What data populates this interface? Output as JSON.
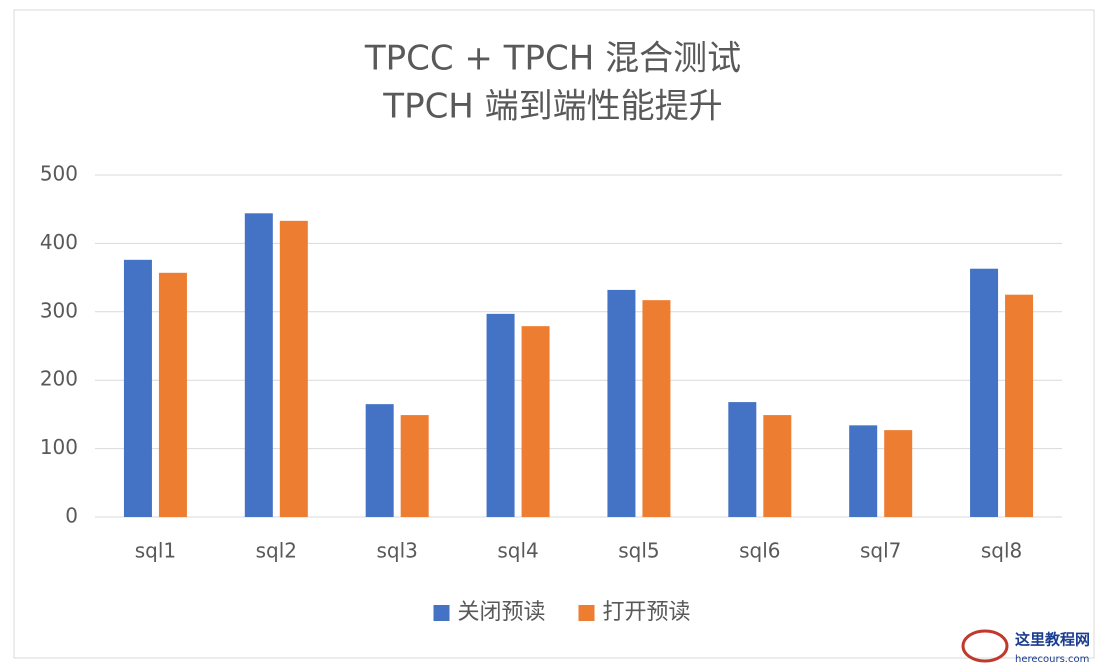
{
  "chart_data": {
    "type": "bar",
    "title": [
      "TPCC + TPCH 混合测试",
      "TPCH 端到端性能提升"
    ],
    "categories": [
      "sql1",
      "sql2",
      "sql3",
      "sql4",
      "sql5",
      "sql6",
      "sql7",
      "sql8"
    ],
    "series": [
      {
        "name": "关闭预读",
        "color": "#4472c4",
        "values": [
          376,
          444,
          165,
          297,
          332,
          168,
          134,
          363
        ]
      },
      {
        "name": "打开预读",
        "color": "#ed7d31",
        "values": [
          357,
          433,
          149,
          279,
          317,
          149,
          127,
          325
        ]
      }
    ],
    "ylim": [
      0,
      500
    ],
    "yticks": [
      0,
      100,
      200,
      300,
      400,
      500
    ],
    "grid": true,
    "legend": "bottom"
  },
  "watermark": {
    "name": "这里教程网",
    "url": "herecours.com"
  }
}
